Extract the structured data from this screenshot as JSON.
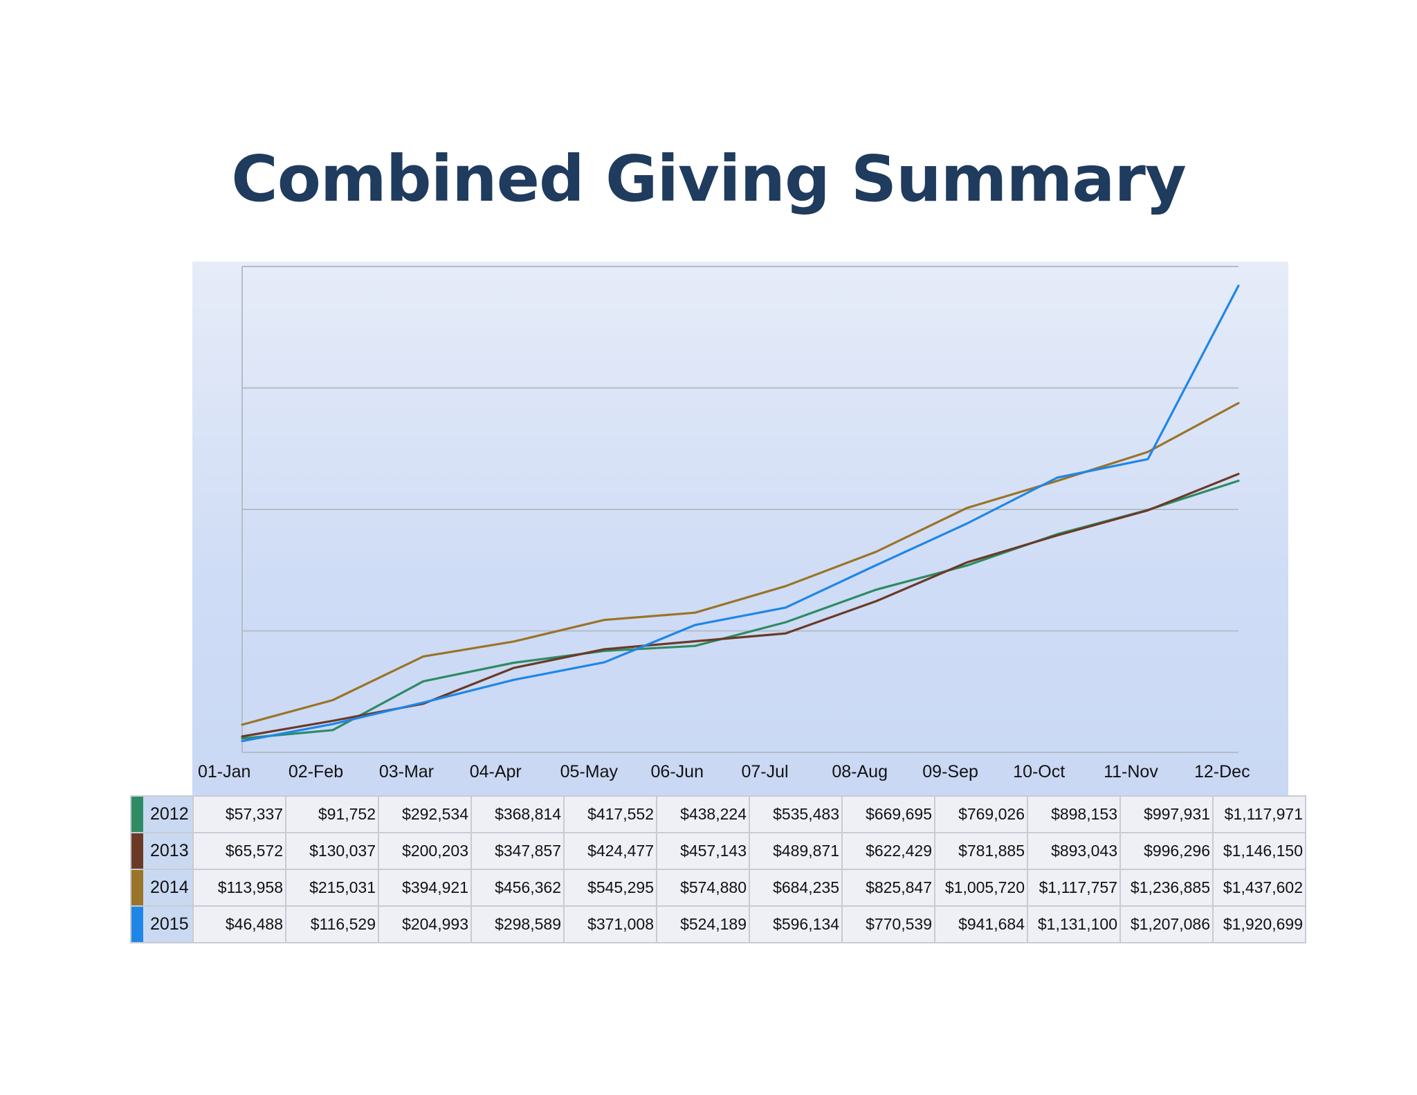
{
  "title": "Combined Giving Summary",
  "chart_data": {
    "type": "line",
    "title": "Combined Giving Summary",
    "categories": [
      "01-Jan",
      "02-Feb",
      "03-Mar",
      "04-Apr",
      "05-May",
      "06-Jun",
      "07-Jul",
      "08-Aug",
      "09-Sep",
      "10-Oct",
      "11-Nov",
      "12-Dec"
    ],
    "series": [
      {
        "name": "2012",
        "color": "#2e8b64",
        "values": [
          57337,
          91752,
          292534,
          368814,
          417552,
          438224,
          535483,
          669695,
          769026,
          898153,
          997931,
          1117971
        ],
        "labels": [
          "$57,337",
          "$91,752",
          "$292,534",
          "$368,814",
          "$417,552",
          "$438,224",
          "$535,483",
          "$669,695",
          "$769,026",
          "$898,153",
          "$997,931",
          "$1,117,971"
        ]
      },
      {
        "name": "2013",
        "color": "#6b3a26",
        "values": [
          65572,
          130037,
          200203,
          347857,
          424477,
          457143,
          489871,
          622429,
          781885,
          893043,
          996296,
          1146150
        ],
        "labels": [
          "$65,572",
          "$130,037",
          "$200,203",
          "$347,857",
          "$424,477",
          "$457,143",
          "$489,871",
          "$622,429",
          "$781,885",
          "$893,043",
          "$996,296",
          "$1,146,150"
        ]
      },
      {
        "name": "2014",
        "color": "#9a7428",
        "values": [
          113958,
          215031,
          394921,
          456362,
          545295,
          574880,
          684235,
          825847,
          1005720,
          1117757,
          1236885,
          1437602
        ],
        "labels": [
          "$113,958",
          "$215,031",
          "$394,921",
          "$456,362",
          "$545,295",
          "$574,880",
          "$684,235",
          "$825,847",
          "$1,005,720",
          "$1,117,757",
          "$1,236,885",
          "$1,437,602"
        ]
      },
      {
        "name": "2015",
        "color": "#1f86e8",
        "values": [
          46488,
          116529,
          204993,
          298589,
          371008,
          524189,
          596134,
          770539,
          941684,
          1131100,
          1207086,
          1920699
        ],
        "labels": [
          "$46,488",
          "$116,529",
          "$204,993",
          "$298,589",
          "$371,008",
          "$524,189",
          "$596,134",
          "$770,539",
          "$941,684",
          "$1,131,100",
          "$1,207,086",
          "$1,920,699"
        ]
      }
    ],
    "ylim": [
      0,
      2000000
    ],
    "grid": true,
    "legend": "table-below"
  }
}
